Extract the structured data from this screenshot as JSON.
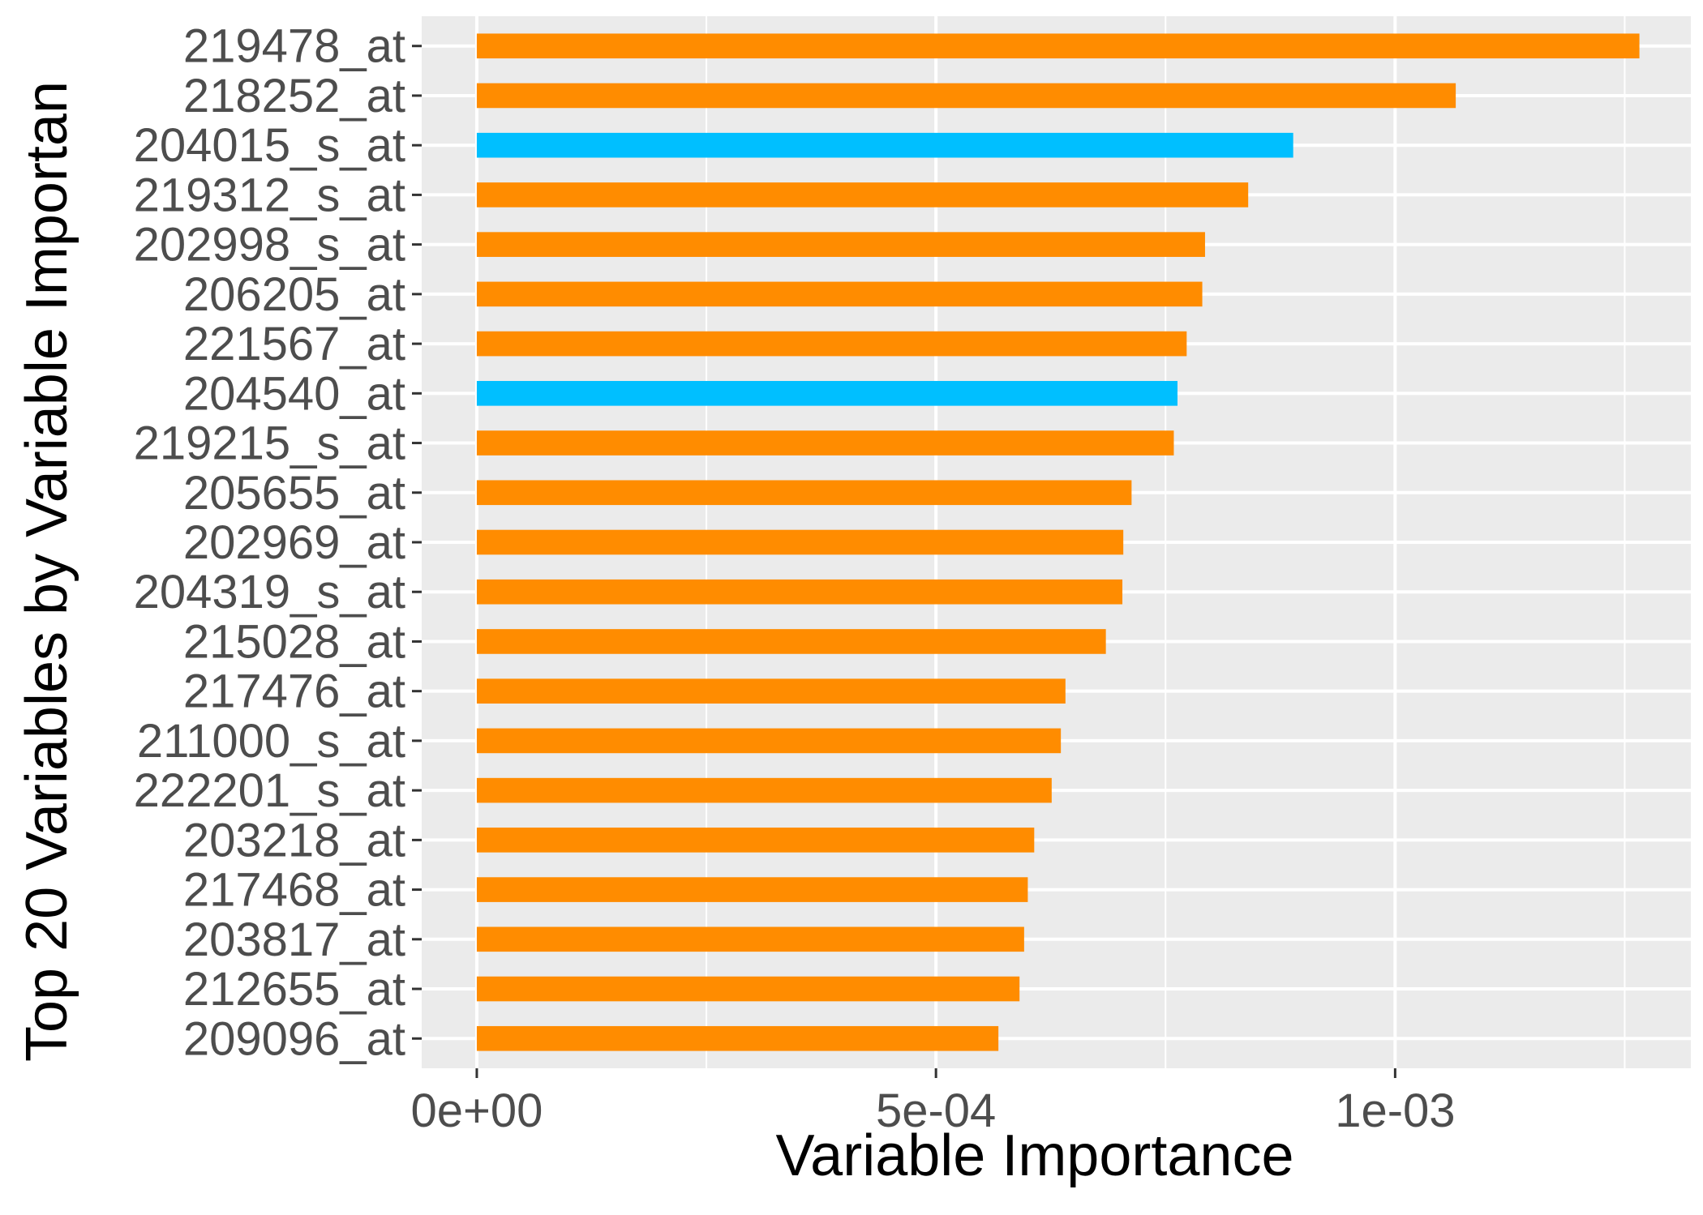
{
  "chart_data": {
    "type": "bar",
    "orientation": "horizontal",
    "xlabel": "Variable Importance",
    "ylabel": "Top 20 Variables by Variable Importan",
    "xlim": [
      -6e-05,
      0.001322
    ],
    "x_ticks": [
      {
        "value": 0,
        "label": "0e+00"
      },
      {
        "value": 0.0005,
        "label": "5e-04"
      },
      {
        "value": 0.001,
        "label": "1e-03"
      }
    ],
    "grid": true,
    "legend": "none",
    "colors": {
      "default": "#ff8c00",
      "highlight": "#00bfff",
      "panel": "#ebebeb",
      "grid": "#ffffff"
    },
    "categories": [
      "219478_at",
      "218252_at",
      "204015_s_at",
      "219312_s_at",
      "202998_s_at",
      "206205_at",
      "221567_at",
      "204540_at",
      "219215_s_at",
      "205655_at",
      "202969_at",
      "204319_s_at",
      "215028_at",
      "217476_at",
      "211000_s_at",
      "222201_s_at",
      "203218_at",
      "217468_at",
      "203817_at",
      "212655_at",
      "209096_at"
    ],
    "values": [
      0.001266,
      0.001066,
      0.000889,
      0.00084,
      0.000793,
      0.00079,
      0.000773,
      0.000763,
      0.000759,
      0.000713,
      0.000704,
      0.000703,
      0.000685,
      0.000641,
      0.000636,
      0.000626,
      0.000607,
      0.0006,
      0.000596,
      0.000591,
      0.000568
    ],
    "bar_colors": [
      "#ff8c00",
      "#ff8c00",
      "#00bfff",
      "#ff8c00",
      "#ff8c00",
      "#ff8c00",
      "#ff8c00",
      "#00bfff",
      "#ff8c00",
      "#ff8c00",
      "#ff8c00",
      "#ff8c00",
      "#ff8c00",
      "#ff8c00",
      "#ff8c00",
      "#ff8c00",
      "#ff8c00",
      "#ff8c00",
      "#ff8c00",
      "#ff8c00",
      "#ff8c00"
    ]
  }
}
